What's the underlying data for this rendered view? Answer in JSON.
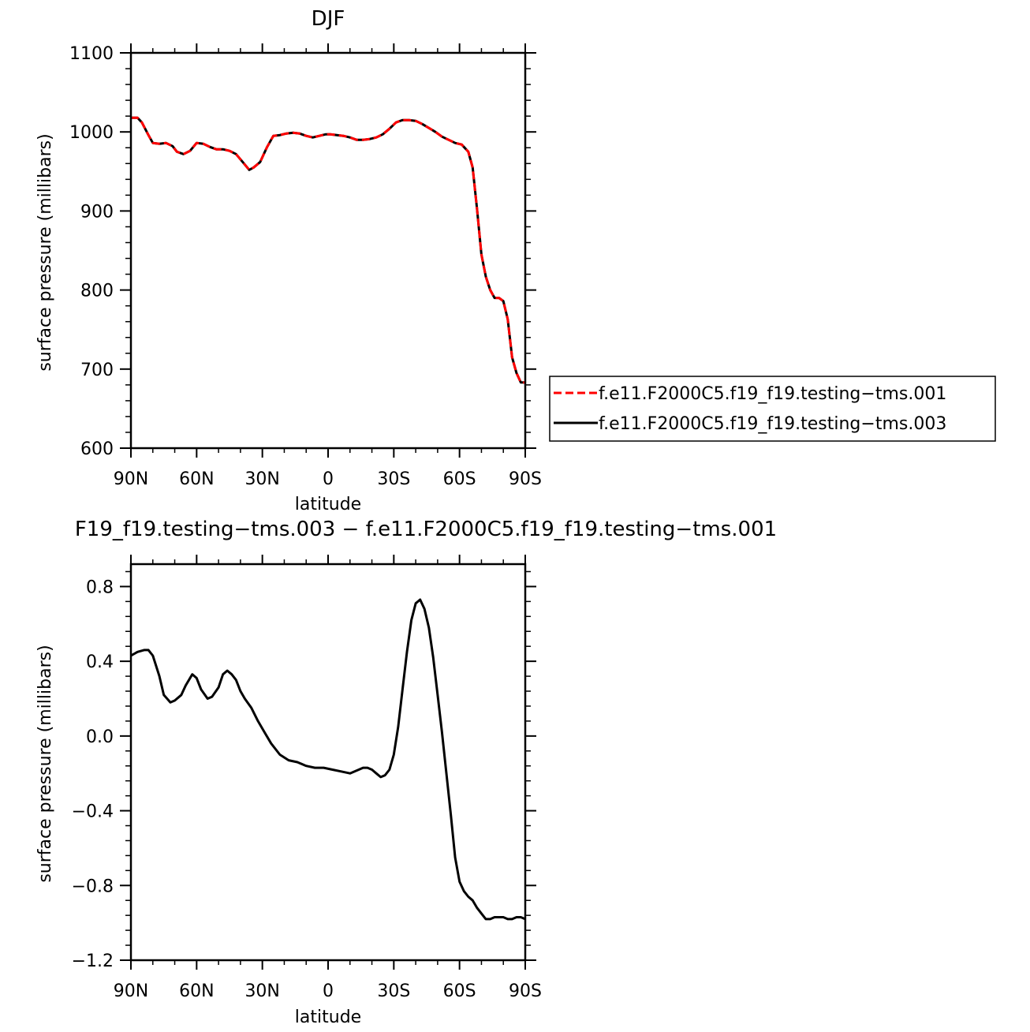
{
  "chart_data": [
    {
      "type": "line",
      "title": "DJF",
      "xlabel": "latitude",
      "ylabel": "surface pressure (millibars)",
      "xlim": [
        -90,
        90
      ],
      "ylim": [
        600,
        1100
      ],
      "x_ticks": [
        -90,
        -60,
        -30,
        0,
        30,
        60,
        90
      ],
      "x_tick_labels": [
        "90N",
        "60N",
        "30N",
        "0",
        "30S",
        "60S",
        "90S"
      ],
      "y_ticks": [
        600,
        700,
        800,
        900,
        1000,
        1100
      ],
      "y_tick_labels": [
        "600",
        "700",
        "800",
        "900",
        "1000",
        "1100"
      ],
      "legend_position": "right",
      "series": [
        {
          "name": "f.e11.F2000C5.f19_f19.testing−tms.001",
          "color": "#ff0000",
          "dash": "dashed",
          "x": [
            -90,
            -87,
            -85,
            -82,
            -80,
            -77,
            -74,
            -71,
            -69,
            -66,
            -63,
            -60,
            -57,
            -54,
            -51,
            -48,
            -45,
            -42,
            -39,
            -36,
            -34,
            -31,
            -28,
            -25,
            -22,
            -19,
            -16,
            -13,
            -10,
            -7,
            -4,
            -1,
            1,
            4,
            7,
            10,
            13,
            16,
            19,
            22,
            25,
            28,
            31,
            34,
            37,
            40,
            43,
            46,
            49,
            52,
            55,
            58,
            61,
            64,
            66,
            68,
            70,
            72,
            74,
            76,
            78,
            80,
            82,
            84,
            86,
            88,
            90
          ],
          "y": [
            1018,
            1018,
            1012,
            996,
            986,
            985,
            986,
            982,
            975,
            972,
            976,
            986,
            985,
            981,
            978,
            978,
            976,
            972,
            962,
            952,
            955,
            962,
            980,
            995,
            996,
            998,
            999,
            998,
            995,
            993,
            995,
            997,
            997,
            996,
            995,
            993,
            990,
            990,
            991,
            993,
            997,
            1004,
            1012,
            1015,
            1015,
            1014,
            1010,
            1005,
            1000,
            994,
            990,
            986,
            984,
            975,
            955,
            902,
            845,
            817,
            800,
            790,
            790,
            786,
            763,
            715,
            695,
            683,
            683
          ]
        },
        {
          "name": "f.e11.F2000C5.f19_f19.testing−tms.003",
          "color": "#000000",
          "dash": "solid",
          "x": [
            -90,
            -87,
            -85,
            -82,
            -80,
            -77,
            -74,
            -71,
            -69,
            -66,
            -63,
            -60,
            -57,
            -54,
            -51,
            -48,
            -45,
            -42,
            -39,
            -36,
            -34,
            -31,
            -28,
            -25,
            -22,
            -19,
            -16,
            -13,
            -10,
            -7,
            -4,
            -1,
            1,
            4,
            7,
            10,
            13,
            16,
            19,
            22,
            25,
            28,
            31,
            34,
            37,
            40,
            43,
            46,
            49,
            52,
            55,
            58,
            61,
            64,
            66,
            68,
            70,
            72,
            74,
            76,
            78,
            80,
            82,
            84,
            86,
            88,
            90
          ],
          "y": [
            1018,
            1018,
            1012,
            996,
            986,
            985,
            986,
            982,
            975,
            972,
            976,
            986,
            985,
            981,
            978,
            978,
            976,
            972,
            962,
            952,
            955,
            962,
            980,
            995,
            996,
            998,
            999,
            998,
            995,
            993,
            995,
            997,
            997,
            996,
            995,
            993,
            990,
            990,
            991,
            993,
            997,
            1004,
            1012,
            1015,
            1015,
            1014,
            1010,
            1005,
            1000,
            994,
            990,
            986,
            984,
            975,
            955,
            902,
            845,
            817,
            800,
            790,
            790,
            786,
            763,
            715,
            695,
            683,
            683
          ]
        }
      ]
    },
    {
      "type": "line",
      "title": "F19_f19.testing−tms.003 − f.e11.F2000C5.f19_f19.testing−tms.001",
      "xlabel": "latitude",
      "ylabel": "surface pressure (millibars)",
      "xlim": [
        -90,
        90
      ],
      "ylim": [
        -1.2,
        0.92
      ],
      "x_ticks": [
        -90,
        -60,
        -30,
        0,
        30,
        60,
        90
      ],
      "x_tick_labels": [
        "90N",
        "60N",
        "30N",
        "0",
        "30S",
        "60S",
        "90S"
      ],
      "y_ticks": [
        -1.2,
        -0.8,
        -0.4,
        0.0,
        0.4,
        0.8
      ],
      "y_tick_labels": [
        "−1.2",
        "−0.8",
        "−0.4",
        "0.0",
        "0.4",
        "0.8"
      ],
      "series": [
        {
          "color": "#000000",
          "dash": "solid",
          "x": [
            -90,
            -87,
            -84,
            -82,
            -80,
            -77,
            -75,
            -72,
            -70,
            -67,
            -65,
            -62,
            -60,
            -58,
            -55,
            -53,
            -50,
            -48,
            -46,
            -44,
            -42,
            -40,
            -38,
            -35,
            -32,
            -29,
            -26,
            -22,
            -18,
            -14,
            -10,
            -6,
            -2,
            2,
            6,
            10,
            14,
            16,
            18,
            20,
            22,
            24,
            26,
            28,
            30,
            32,
            34,
            36,
            38,
            40,
            42,
            44,
            46,
            48,
            50,
            52,
            54,
            56,
            58,
            60,
            62,
            64,
            66,
            68,
            70,
            72,
            74,
            76,
            78,
            80,
            82,
            84,
            86,
            88,
            90
          ],
          "y": [
            0.43,
            0.45,
            0.46,
            0.46,
            0.43,
            0.32,
            0.22,
            0.18,
            0.19,
            0.22,
            0.27,
            0.33,
            0.31,
            0.25,
            0.2,
            0.21,
            0.26,
            0.33,
            0.35,
            0.33,
            0.3,
            0.24,
            0.2,
            0.15,
            0.08,
            0.02,
            -0.04,
            -0.1,
            -0.13,
            -0.14,
            -0.16,
            -0.17,
            -0.17,
            -0.18,
            -0.19,
            -0.2,
            -0.18,
            -0.17,
            -0.17,
            -0.18,
            -0.2,
            -0.22,
            -0.21,
            -0.18,
            -0.1,
            0.05,
            0.25,
            0.45,
            0.62,
            0.71,
            0.73,
            0.68,
            0.58,
            0.42,
            0.22,
            0.02,
            -0.2,
            -0.42,
            -0.65,
            -0.78,
            -0.83,
            -0.86,
            -0.88,
            -0.92,
            -0.95,
            -0.98,
            -0.98,
            -0.97,
            -0.97,
            -0.97,
            -0.98,
            -0.98,
            -0.97,
            -0.97,
            -0.98
          ]
        }
      ]
    }
  ]
}
